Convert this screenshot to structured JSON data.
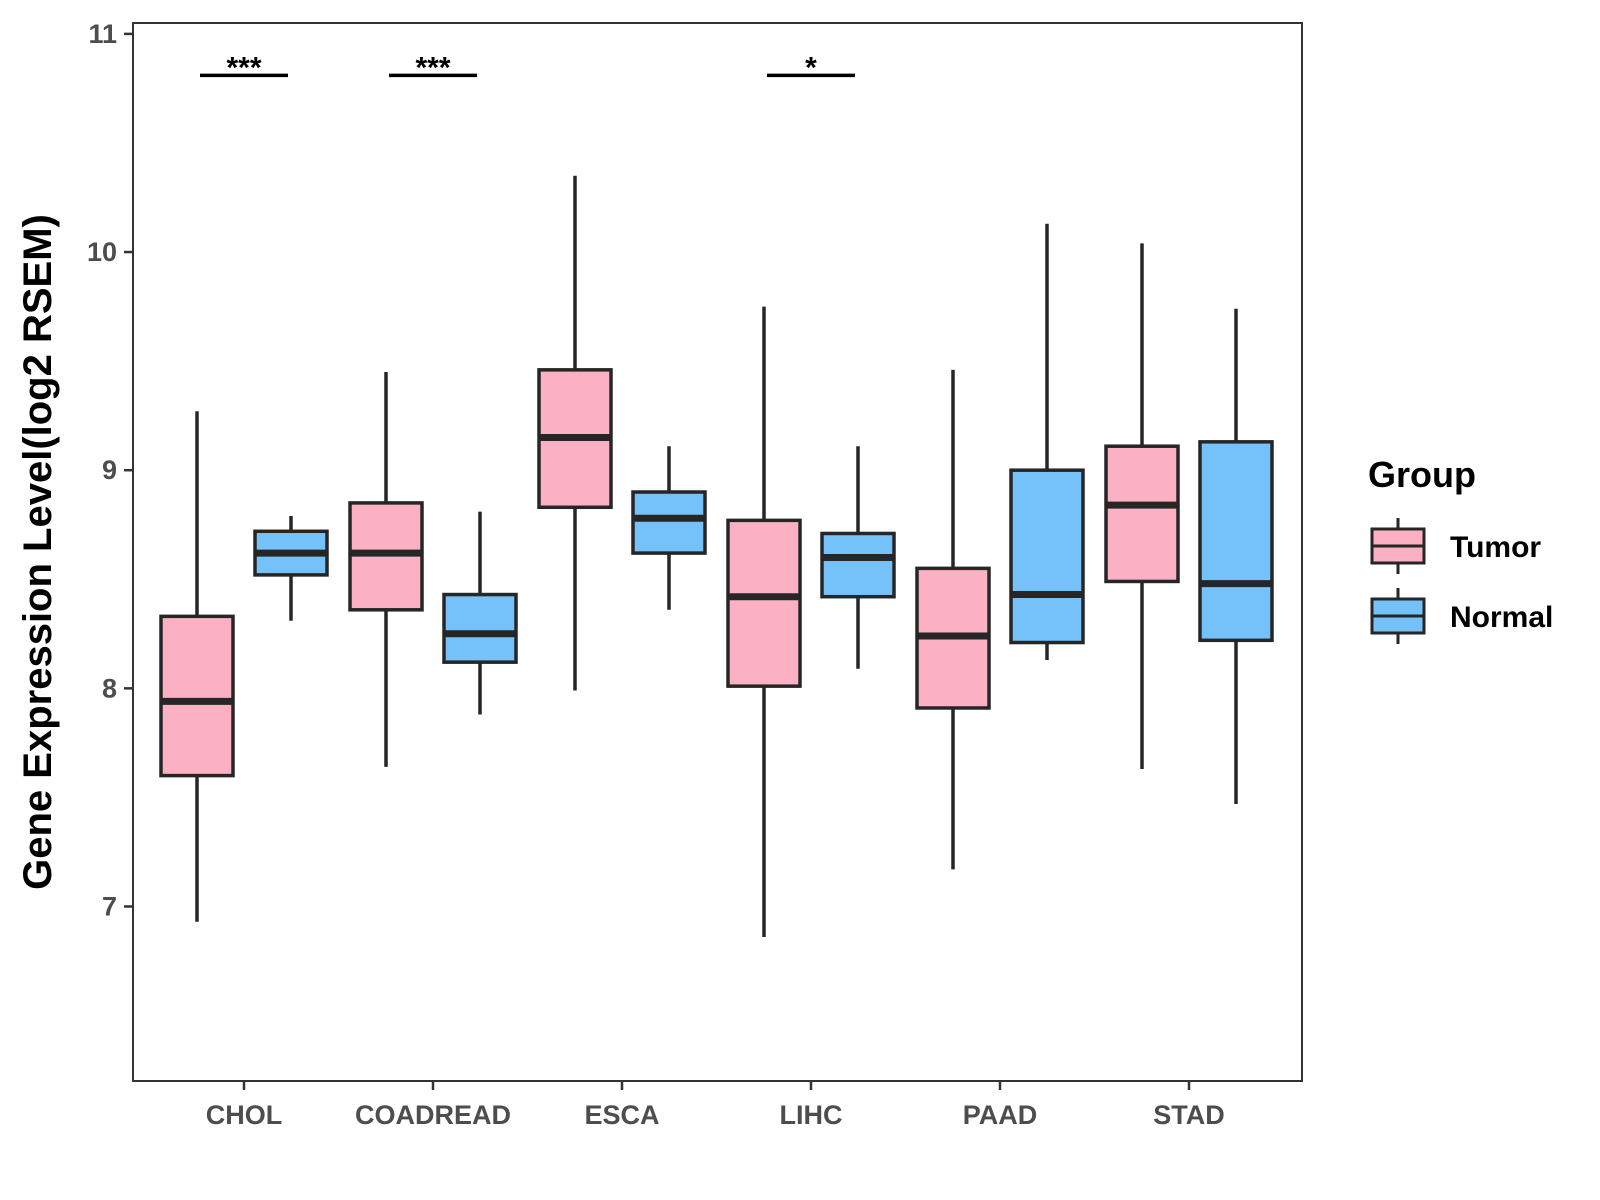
{
  "chart_data": {
    "type": "boxplot",
    "title": "",
    "xlabel": "",
    "ylabel": "Gene Expression Level(log2 RSEM)",
    "ylim": [
      6.2,
      11.05
    ],
    "yticks": [
      7,
      8,
      9,
      10,
      11
    ],
    "grid": false,
    "legend": {
      "title": "Group",
      "position": "right",
      "entries": [
        {
          "name": "Tumor",
          "color": "#FBB0C4"
        },
        {
          "name": "Normal",
          "color": "#75C1F9"
        }
      ]
    },
    "categories": [
      "CHOL",
      "COADREAD",
      "ESCA",
      "LIHC",
      "PAAD",
      "STAD"
    ],
    "series": [
      {
        "name": "Tumor",
        "color": "#FBB0C4",
        "boxes": [
          {
            "whisker_low": 6.93,
            "q1": 7.6,
            "median": 7.94,
            "q3": 8.33,
            "whisker_high": 9.27
          },
          {
            "whisker_low": 7.64,
            "q1": 8.36,
            "median": 8.62,
            "q3": 8.85,
            "whisker_high": 9.45
          },
          {
            "whisker_low": 7.99,
            "q1": 8.83,
            "median": 9.15,
            "q3": 9.46,
            "whisker_high": 10.35
          },
          {
            "whisker_low": 6.86,
            "q1": 8.01,
            "median": 8.42,
            "q3": 8.77,
            "whisker_high": 9.75
          },
          {
            "whisker_low": 7.17,
            "q1": 7.91,
            "median": 8.24,
            "q3": 8.55,
            "whisker_high": 9.46
          },
          {
            "whisker_low": 7.63,
            "q1": 8.49,
            "median": 8.84,
            "q3": 9.11,
            "whisker_high": 10.04
          }
        ]
      },
      {
        "name": "Normal",
        "color": "#75C1F9",
        "boxes": [
          {
            "whisker_low": 8.31,
            "q1": 8.52,
            "median": 8.62,
            "q3": 8.72,
            "whisker_high": 8.79
          },
          {
            "whisker_low": 7.88,
            "q1": 8.12,
            "median": 8.25,
            "q3": 8.43,
            "whisker_high": 8.81
          },
          {
            "whisker_low": 8.36,
            "q1": 8.62,
            "median": 8.78,
            "q3": 8.9,
            "whisker_high": 9.11
          },
          {
            "whisker_low": 8.09,
            "q1": 8.42,
            "median": 8.6,
            "q3": 8.71,
            "whisker_high": 9.11
          },
          {
            "whisker_low": 8.13,
            "q1": 8.21,
            "median": 8.43,
            "q3": 9.0,
            "whisker_high": 10.13
          },
          {
            "whisker_low": 7.47,
            "q1": 8.22,
            "median": 8.48,
            "q3": 9.13,
            "whisker_high": 9.74
          }
        ]
      }
    ],
    "annotations": [
      {
        "category": "CHOL",
        "label": "***",
        "y": 10.81
      },
      {
        "category": "COADREAD",
        "label": "***",
        "y": 10.81
      },
      {
        "category": "LIHC",
        "label": "*",
        "y": 10.81
      }
    ]
  }
}
